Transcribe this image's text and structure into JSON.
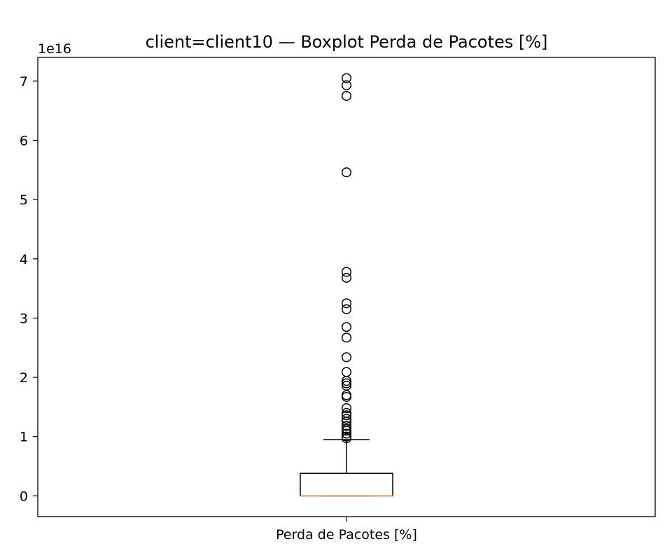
{
  "chart_data": {
    "type": "boxplot",
    "title": "client=client10 — Boxplot Perda de Pacotes [%]",
    "xlabel": "",
    "ylabel": "",
    "categories": [
      "Perda de Pacotes [%]"
    ],
    "y_offset_label": "1e16",
    "y_multiplier": 1e+16,
    "ylim": [
      -0.35,
      7.4
    ],
    "yticks": [
      0,
      1,
      2,
      3,
      4,
      5,
      6,
      7
    ],
    "ytick_labels": [
      "0",
      "1",
      "2",
      "3",
      "4",
      "5",
      "6",
      "7"
    ],
    "grid": false,
    "box": {
      "whisker_low": 0,
      "q1": 0,
      "median": 0,
      "q3": 0.38,
      "whisker_high": 0.95
    },
    "outliers": [
      7.05,
      6.93,
      6.75,
      5.46,
      3.78,
      3.68,
      3.25,
      3.15,
      2.85,
      2.67,
      2.34,
      2.09,
      1.94,
      1.9,
      1.86,
      1.7,
      1.67,
      1.48,
      1.4,
      1.36,
      1.3,
      1.25,
      1.18,
      1.13,
      1.1,
      1.05,
      1.0,
      0.97
    ],
    "colors": {
      "box": "#000000",
      "median": "#e8873a",
      "outlier_edge": "#000000"
    }
  }
}
